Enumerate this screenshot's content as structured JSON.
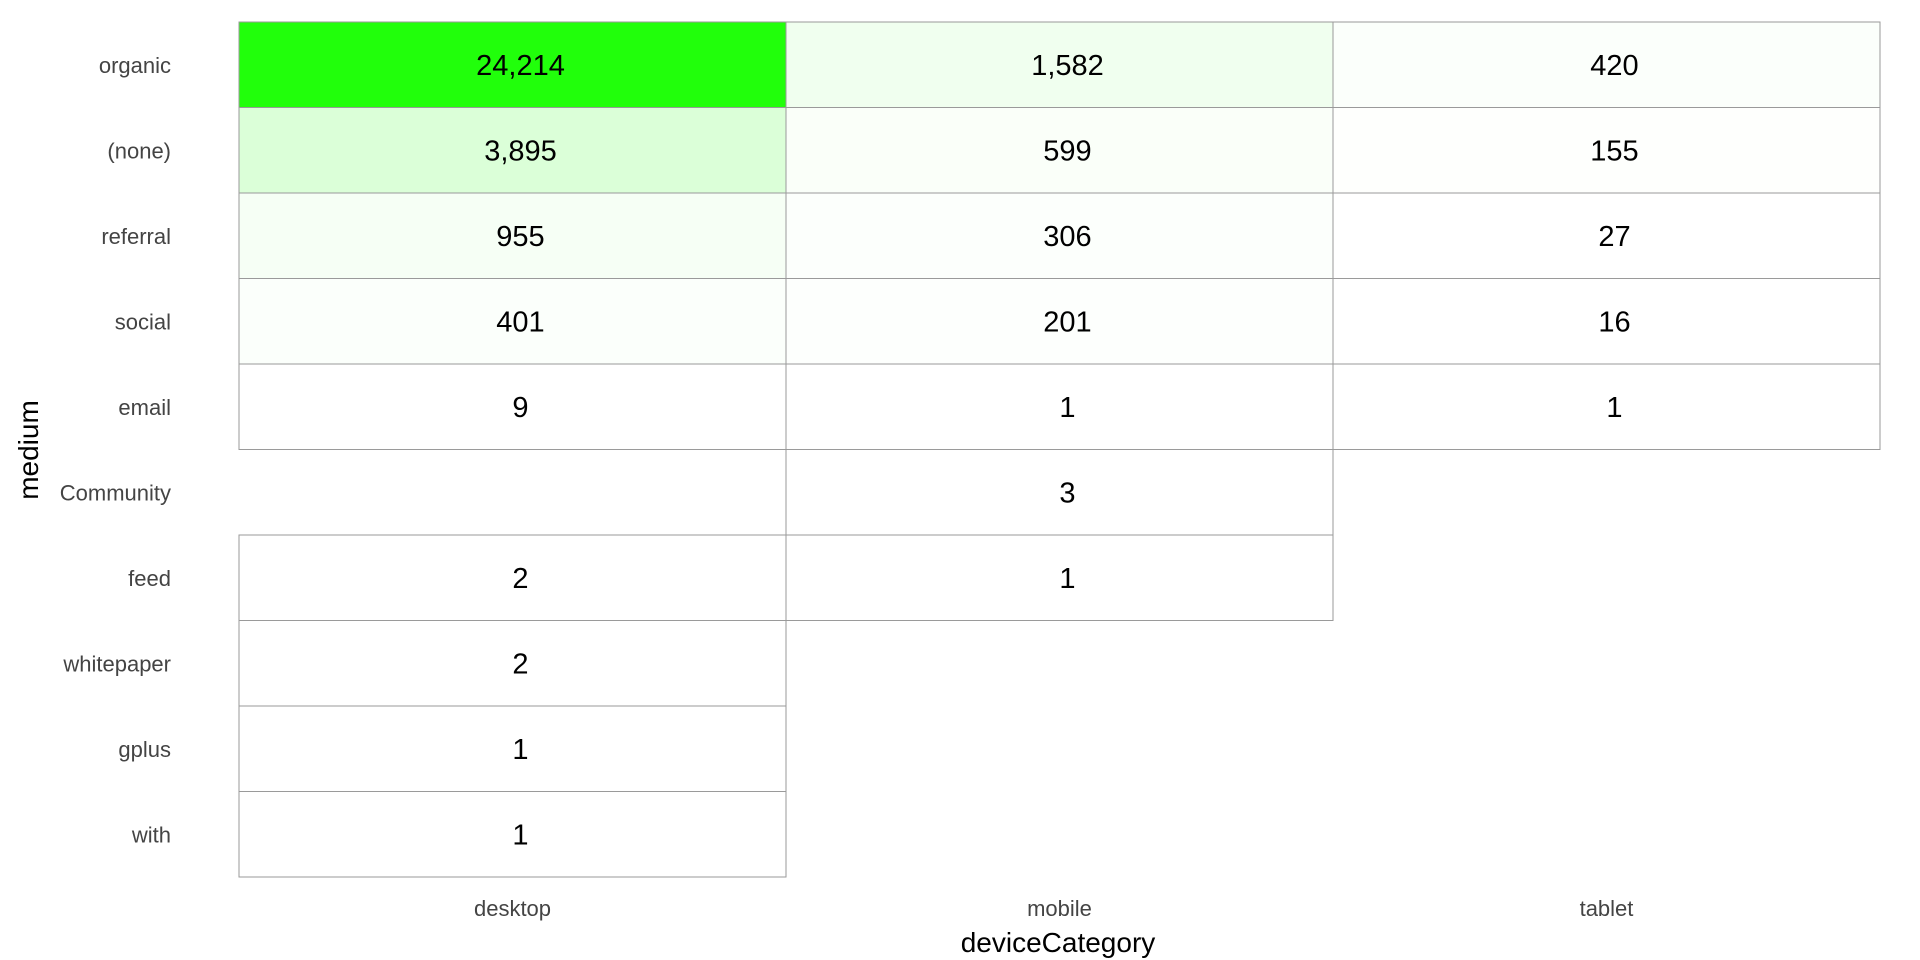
{
  "chart_data": {
    "type": "heatmap",
    "title": "",
    "xlabel": "deviceCategory",
    "ylabel": "medium",
    "x_categories": [
      "desktop",
      "mobile",
      "tablet"
    ],
    "y_categories": [
      "organic",
      "(none)",
      "referral",
      "social",
      "email",
      "Community",
      "feed",
      "whitepaper",
      "gplus",
      "with"
    ],
    "cells": [
      {
        "y": "organic",
        "x": "desktop",
        "value": 24214,
        "label": "24,214"
      },
      {
        "y": "organic",
        "x": "mobile",
        "value": 1582,
        "label": "1,582"
      },
      {
        "y": "organic",
        "x": "tablet",
        "value": 420,
        "label": "420"
      },
      {
        "y": "(none)",
        "x": "desktop",
        "value": 3895,
        "label": "3,895"
      },
      {
        "y": "(none)",
        "x": "mobile",
        "value": 599,
        "label": "599"
      },
      {
        "y": "(none)",
        "x": "tablet",
        "value": 155,
        "label": "155"
      },
      {
        "y": "referral",
        "x": "desktop",
        "value": 955,
        "label": "955"
      },
      {
        "y": "referral",
        "x": "mobile",
        "value": 306,
        "label": "306"
      },
      {
        "y": "referral",
        "x": "tablet",
        "value": 27,
        "label": "27"
      },
      {
        "y": "social",
        "x": "desktop",
        "value": 401,
        "label": "401"
      },
      {
        "y": "social",
        "x": "mobile",
        "value": 201,
        "label": "201"
      },
      {
        "y": "social",
        "x": "tablet",
        "value": 16,
        "label": "16"
      },
      {
        "y": "email",
        "x": "desktop",
        "value": 9,
        "label": "9"
      },
      {
        "y": "email",
        "x": "mobile",
        "value": 1,
        "label": "1"
      },
      {
        "y": "email",
        "x": "tablet",
        "value": 1,
        "label": "1"
      },
      {
        "y": "Community",
        "x": "mobile",
        "value": 3,
        "label": "3"
      },
      {
        "y": "feed",
        "x": "desktop",
        "value": 2,
        "label": "2"
      },
      {
        "y": "feed",
        "x": "mobile",
        "value": 1,
        "label": "1"
      },
      {
        "y": "whitepaper",
        "x": "desktop",
        "value": 2,
        "label": "2"
      },
      {
        "y": "gplus",
        "x": "desktop",
        "value": 1,
        "label": "1"
      },
      {
        "y": "with",
        "x": "desktop",
        "value": 1,
        "label": "1"
      }
    ],
    "color_scale": {
      "low": "#ffffff",
      "high": "#21ff0b"
    },
    "grid": false,
    "legend": "none"
  }
}
